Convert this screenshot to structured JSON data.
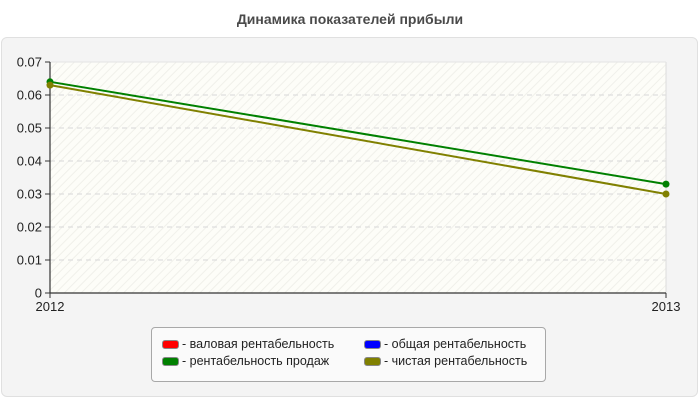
{
  "header": {
    "title": "Динамика показателей прибыли"
  },
  "legend": {
    "items": [
      {
        "label": "- валовая рентабельность",
        "color": "#ff0000"
      },
      {
        "label": "- общая рентабельность",
        "color": "#0000ff"
      },
      {
        "label": "- рентабельность продаж",
        "color": "#008000"
      },
      {
        "label": "- чистая рентабельность",
        "color": "#808000"
      }
    ]
  },
  "chart_data": {
    "type": "line",
    "title": "Динамика показателей прибыли",
    "xlabel": "",
    "ylabel": "",
    "categories": [
      "2012",
      "2013"
    ],
    "ylim": [
      0,
      0.07
    ],
    "yticks": [
      "0",
      "0.01",
      "0.02",
      "0.03",
      "0.04",
      "0.05",
      "0.06",
      "0.07"
    ],
    "grid": true,
    "legend_position": "bottom",
    "series": [
      {
        "name": "валовая рентабельность",
        "color": "#ff0000",
        "values": [
          null,
          null
        ]
      },
      {
        "name": "общая рентабельность",
        "color": "#0000ff",
        "values": [
          null,
          null
        ]
      },
      {
        "name": "рентабельность продаж",
        "color": "#008000",
        "values": [
          0.064,
          0.033
        ]
      },
      {
        "name": "чистая рентабельность",
        "color": "#808000",
        "values": [
          0.063,
          0.03
        ]
      }
    ]
  }
}
